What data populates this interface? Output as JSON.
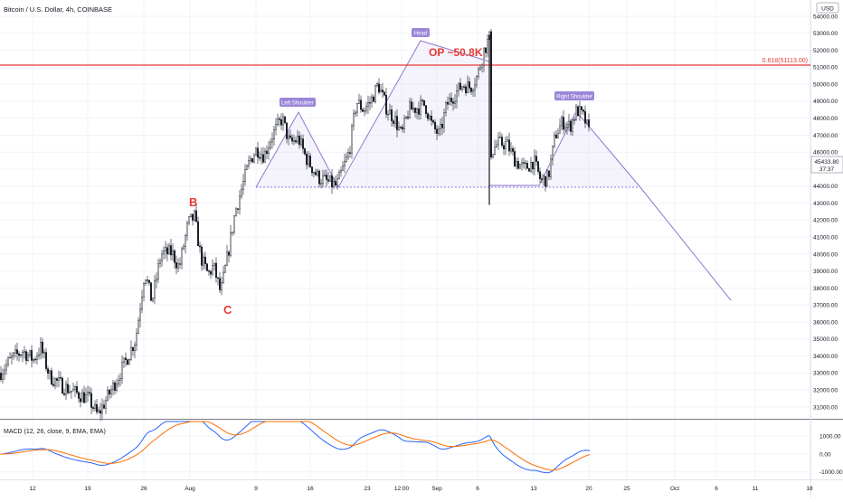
{
  "header": {
    "symbol_label": "Bitcoin / U.S. Dollar, 4h, COINBASE",
    "currency_label": "USD"
  },
  "price_axis": {
    "ticks": [
      "54000.00",
      "53000.00",
      "52000.00",
      "51000.00",
      "50000.00",
      "49000.00",
      "48000.00",
      "47000.00",
      "46000.00",
      "45000.00",
      "44000.00",
      "43000.00",
      "42000.00",
      "41000.00",
      "40000.00",
      "39000.00",
      "38000.00",
      "37000.00",
      "36000.00",
      "35000.00",
      "34000.00",
      "33000.00",
      "32000.00",
      "31000.00"
    ],
    "last_price_label": "45433.80",
    "countdown_label": "37:37"
  },
  "macd_axis": {
    "ticks": [
      "1000.00",
      "0.00",
      "-1000.00"
    ]
  },
  "time_axis": {
    "ticks": [
      "12",
      "19",
      "26",
      "Aug",
      "9",
      "16",
      "23",
      "12:00",
      "Sep",
      "6",
      "13",
      "20",
      "25",
      "Oct",
      "6",
      "11",
      "18"
    ]
  },
  "colors": {
    "up_candle": "#ffffff",
    "candle_outline": "#131722",
    "fib_line": "#e53935",
    "pattern": "#9575cd",
    "pattern_label_bg": "#9b86d8",
    "macd_line": "#2962ff",
    "signal_line": "#ff6d00",
    "annotation_text": "#e53935",
    "neckline": "#8b7fe0"
  },
  "annotations": {
    "fib_label": "0.618(51113.00)",
    "op_label": "OP ~50.8K",
    "point_b": "B",
    "point_c": "C",
    "left_shoulder": "Left Shoulder",
    "head": "Head",
    "right_shoulder": "Right Shoulder"
  },
  "macd": {
    "label": "MACD (12, 26, close, 9, EMA, EMA)"
  },
  "chart_data": {
    "type": "candlestick",
    "title": "Bitcoin / U.S. Dollar, 4h, COINBASE",
    "currency": "USD",
    "ylim": [
      30200,
      54800
    ],
    "fib_level": 51113,
    "last_price": 45433.8,
    "neckline": 44000,
    "pattern": "head-and-shoulders",
    "close_path": [
      {
        "x": "Jul 7",
        "y": 33000
      },
      {
        "x": "Jul 9",
        "y": 33800
      },
      {
        "x": "Jul 10",
        "y": 34300
      },
      {
        "x": "Jul 11",
        "y": 33800
      },
      {
        "x": "Jul 12",
        "y": 34500
      },
      {
        "x": "Jul 13",
        "y": 32800
      },
      {
        "x": "Jul 15",
        "y": 32200
      },
      {
        "x": "Jul 17",
        "y": 31800
      },
      {
        "x": "Jul 18",
        "y": 31500
      },
      {
        "x": "Jul 20",
        "y": 30500
      },
      {
        "x": "Jul 21",
        "y": 31500
      },
      {
        "x": "Jul 22",
        "y": 32500
      },
      {
        "x": "Jul 24",
        "y": 33800
      },
      {
        "x": "Jul 25",
        "y": 35000
      },
      {
        "x": "Jul 26",
        "y": 39000
      },
      {
        "x": "Jul 27",
        "y": 37200
      },
      {
        "x": "Jul 28",
        "y": 40000
      },
      {
        "x": "Jul 29",
        "y": 40100
      },
      {
        "x": "Jul 30",
        "y": 39200
      },
      {
        "x": "Jul 31",
        "y": 41800
      },
      {
        "x": "Aug 1",
        "y": 42200
      },
      {
        "x": "Aug 2",
        "y": 39800
      },
      {
        "x": "Aug 3",
        "y": 38800
      },
      {
        "x": "Aug 4",
        "y": 39300
      },
      {
        "x": "Aug 5",
        "y": 37700
      },
      {
        "x": "Aug 6",
        "y": 40000
      },
      {
        "x": "Aug 7",
        "y": 42500
      },
      {
        "x": "Aug 8",
        "y": 44000
      },
      {
        "x": "Aug 9",
        "y": 45500
      },
      {
        "x": "Aug 10",
        "y": 46200
      },
      {
        "x": "Aug 11",
        "y": 45800
      },
      {
        "x": "Aug 12",
        "y": 46900
      },
      {
        "x": "Aug 13",
        "y": 48000
      },
      {
        "x": "Aug 14",
        "y": 46500
      },
      {
        "x": "Aug 15",
        "y": 46800
      },
      {
        "x": "Aug 16",
        "y": 45700
      },
      {
        "x": "Aug 17",
        "y": 44500
      },
      {
        "x": "Aug 18",
        "y": 44000
      },
      {
        "x": "Aug 19",
        "y": 46000
      },
      {
        "x": "Aug 20",
        "y": 49000
      },
      {
        "x": "Aug 21",
        "y": 48500
      },
      {
        "x": "Aug 22",
        "y": 49000
      },
      {
        "x": "Aug 23",
        "y": 50000
      },
      {
        "x": "Aug 24",
        "y": 48500
      },
      {
        "x": "Aug 25",
        "y": 48000
      },
      {
        "x": "Aug 26",
        "y": 47000
      },
      {
        "x": "Aug 27",
        "y": 48500
      },
      {
        "x": "Aug 28",
        "y": 48600
      },
      {
        "x": "Aug 29",
        "y": 48800
      },
      {
        "x": "Aug 30",
        "y": 47500
      },
      {
        "x": "Aug 31",
        "y": 47000
      },
      {
        "x": "Sep 1",
        "y": 48800
      },
      {
        "x": "Sep 2",
        "y": 49500
      },
      {
        "x": "Sep 3",
        "y": 50000
      },
      {
        "x": "Sep 4",
        "y": 49800
      },
      {
        "x": "Sep 5",
        "y": 50500
      },
      {
        "x": "Sep 6",
        "y": 52000
      },
      {
        "x": "Sep 7",
        "y": 52700
      },
      {
        "x": "Sep 7b",
        "y": 46000
      },
      {
        "x": "Sep 8",
        "y": 46500
      },
      {
        "x": "Sep 9",
        "y": 46500
      },
      {
        "x": "Sep 10",
        "y": 45500
      },
      {
        "x": "Sep 11",
        "y": 45000
      },
      {
        "x": "Sep 12",
        "y": 45500
      },
      {
        "x": "Sep 13",
        "y": 44300
      },
      {
        "x": "Sep 14",
        "y": 44500
      },
      {
        "x": "Sep 15",
        "y": 47000
      },
      {
        "x": "Sep 16",
        "y": 47800
      },
      {
        "x": "Sep 17",
        "y": 47500
      },
      {
        "x": "Sep 18",
        "y": 48500
      },
      {
        "x": "Sep 19",
        "y": 48000
      },
      {
        "x": "Sep 20",
        "y": 47000
      },
      {
        "x": "Sep 20b",
        "y": 45433.8
      }
    ]
  }
}
